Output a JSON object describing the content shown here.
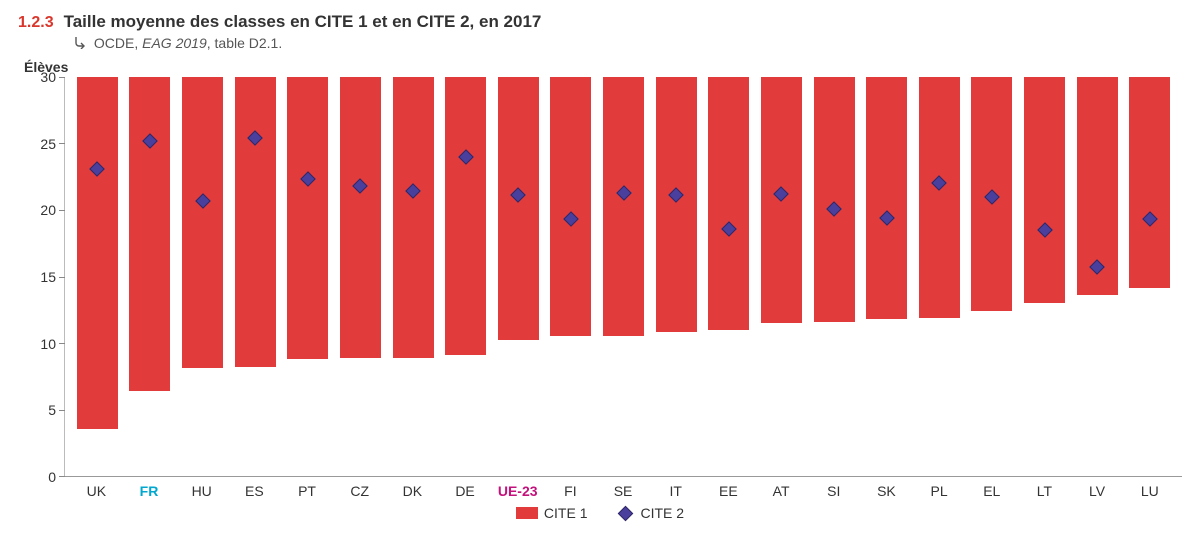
{
  "figure_number": "1.2.3",
  "figure_number_color": "#d9372c",
  "title": "Taille moyenne des classes en CITE 1 et en CITE 2, en 2017",
  "title_color": "#333333",
  "source_prefix": "OCDE, ",
  "source_italic": "EAG 2019",
  "source_suffix": ", table D2.1.",
  "y_axis_title": "Élèves",
  "chart": {
    "type": "bar+scatter",
    "ylim": [
      0,
      30
    ],
    "yticks": [
      0,
      5,
      10,
      15,
      20,
      25,
      30
    ],
    "bar_color": "#e23b3b",
    "marker_fill": "#4b3f9e",
    "marker_border": "#2f2766",
    "background": "#ffffff",
    "axis_color": "#999999",
    "x_label_color": "#333333",
    "highlight_colors": {
      "FR": "#00a7cf",
      "UE-23": "#c4127c"
    },
    "categories": [
      "UK",
      "FR",
      "HU",
      "ES",
      "PT",
      "CZ",
      "DK",
      "DE",
      "UE-23",
      "FI",
      "SE",
      "IT",
      "EE",
      "AT",
      "SI",
      "SK",
      "PL",
      "EL",
      "LT",
      "LV",
      "LU"
    ],
    "bar_values": [
      26.5,
      23.6,
      21.9,
      21.8,
      21.2,
      21.1,
      21.1,
      20.9,
      19.8,
      19.5,
      19.5,
      19.2,
      19.0,
      18.5,
      18.4,
      18.2,
      18.1,
      17.6,
      17.0,
      16.4,
      15.9
    ],
    "marker_values": [
      23.1,
      25.2,
      20.7,
      25.4,
      22.3,
      21.8,
      21.4,
      24.0,
      21.1,
      19.3,
      21.3,
      21.1,
      18.6,
      21.2,
      20.1,
      19.4,
      22.0,
      21.0,
      18.5,
      15.7,
      19.3
    ]
  },
  "legend": {
    "series1": "CITE 1",
    "series2": "CITE 2"
  }
}
